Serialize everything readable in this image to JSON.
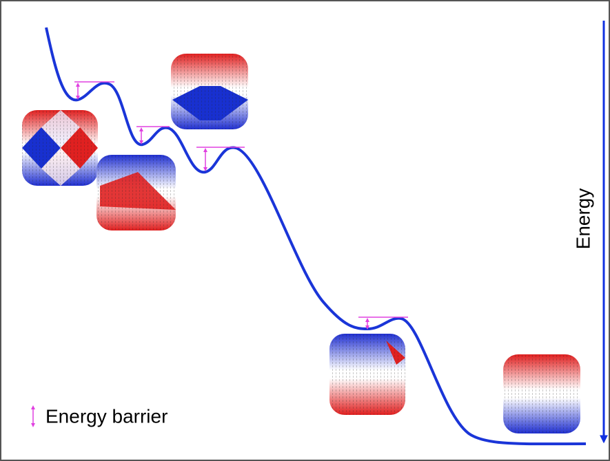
{
  "axis_label": "Energy",
  "legend": {
    "label": "Energy barrier"
  }
}
